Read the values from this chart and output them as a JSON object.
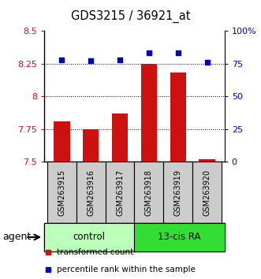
{
  "title": "GDS3215 / 36921_at",
  "samples": [
    "GSM263915",
    "GSM263916",
    "GSM263917",
    "GSM263918",
    "GSM263919",
    "GSM263920"
  ],
  "bar_values": [
    7.81,
    7.75,
    7.87,
    8.25,
    8.18,
    7.52
  ],
  "bar_bottom": 7.5,
  "percentile_values": [
    78,
    77,
    78,
    83,
    83,
    76
  ],
  "bar_color": "#cc1111",
  "marker_color": "#0000bb",
  "ylim_left": [
    7.5,
    8.5
  ],
  "ylim_right": [
    0,
    100
  ],
  "yticks_left": [
    7.5,
    7.75,
    8.0,
    8.25,
    8.5
  ],
  "ytick_labels_left": [
    "7.5",
    "7.75",
    "8",
    "8.25",
    "8.5"
  ],
  "yticks_right": [
    0,
    25,
    50,
    75,
    100
  ],
  "ytick_labels_right": [
    "0",
    "25",
    "50",
    "75",
    "100%"
  ],
  "groups": [
    {
      "label": "control",
      "indices": [
        0,
        1,
        2
      ],
      "color": "#bbffbb"
    },
    {
      "label": "13-cis RA",
      "indices": [
        3,
        4,
        5
      ],
      "color": "#33dd33"
    }
  ],
  "agent_label": "agent",
  "legend_bar_label": "transformed count",
  "legend_marker_label": "percentile rank within the sample",
  "figsize": [
    3.31,
    3.54
  ],
  "dpi": 100
}
